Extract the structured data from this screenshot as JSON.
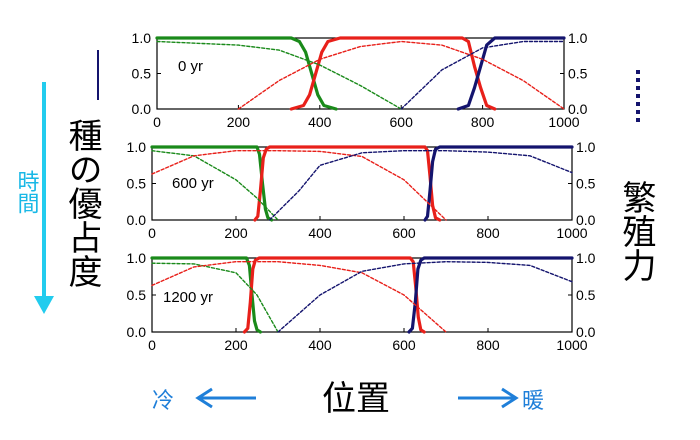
{
  "labels": {
    "time": "時間",
    "dominance": "種の優占度",
    "fecundity": "繁殖力",
    "position": "位置",
    "cold": "冷",
    "warm": "暖"
  },
  "colors": {
    "green": "#1a8a1a",
    "red": "#e8201a",
    "navy": "#14146e",
    "arrow_cyan": "#22ccee",
    "arrow_blue": "#1f7fd9",
    "ylabel_line": "#14146e"
  },
  "chart_data": [
    {
      "type": "line",
      "title": "",
      "annotation": "0 yr",
      "xlim": [
        0,
        1000
      ],
      "ylim_left": [
        0,
        1.0
      ],
      "ylim_right": [
        0,
        1.0
      ],
      "xticks": [
        "0",
        "200",
        "400",
        "600",
        "800",
        "1000"
      ],
      "yticks_left": [
        "0.0",
        "0.5",
        "1.0"
      ],
      "yticks_right": [
        "0.0",
        "0.5",
        "1.0"
      ],
      "series": [
        {
          "color": "green",
          "style": "solid",
          "x": [
            0,
            330,
            350,
            365,
            380,
            395,
            410,
            440
          ],
          "y": [
            1,
            1,
            0.95,
            0.8,
            0.5,
            0.2,
            0.05,
            0
          ]
        },
        {
          "color": "red",
          "style": "solid",
          "x": [
            330,
            360,
            375,
            390,
            405,
            420,
            450,
            750,
            765,
            780,
            795,
            810,
            830
          ],
          "y": [
            0,
            0.05,
            0.2,
            0.5,
            0.8,
            0.95,
            1,
            1,
            0.95,
            0.6,
            0.3,
            0.05,
            0
          ]
        },
        {
          "color": "navy",
          "style": "solid",
          "x": [
            740,
            765,
            780,
            795,
            810,
            830,
            1000
          ],
          "y": [
            0,
            0.05,
            0.3,
            0.6,
            0.9,
            1,
            1
          ]
        },
        {
          "color": "green",
          "style": "dashed",
          "x": [
            0,
            200,
            300,
            400,
            500,
            600
          ],
          "y": [
            0.95,
            0.9,
            0.83,
            0.62,
            0.33,
            0
          ]
        },
        {
          "color": "red",
          "style": "dashed",
          "x": [
            200,
            300,
            400,
            500,
            600,
            700,
            800,
            900,
            1000
          ],
          "y": [
            0,
            0.4,
            0.7,
            0.88,
            0.95,
            0.9,
            0.7,
            0.4,
            0
          ]
        },
        {
          "color": "navy",
          "style": "dashed",
          "x": [
            600,
            700,
            800,
            900,
            1000
          ],
          "y": [
            0,
            0.55,
            0.86,
            0.95,
            0.95
          ]
        }
      ]
    },
    {
      "type": "line",
      "title": "",
      "annotation": "600 yr",
      "xlim": [
        0,
        1000
      ],
      "ylim_left": [
        0,
        1.0
      ],
      "ylim_right": [
        0,
        1.0
      ],
      "xticks": [
        "0",
        "200",
        "400",
        "600",
        "800",
        "1000"
      ],
      "yticks_left": [
        "0.0",
        "0.5",
        "1.0"
      ],
      "yticks_right": [
        "0.0",
        "0.5",
        "1.0"
      ],
      "series": [
        {
          "color": "green",
          "style": "solid",
          "x": [
            0,
            250,
            256,
            263,
            270,
            276,
            285
          ],
          "y": [
            1,
            1,
            0.9,
            0.5,
            0.15,
            0.03,
            0
          ]
        },
        {
          "color": "red",
          "style": "solid",
          "x": [
            245,
            252,
            258,
            265,
            272,
            280,
            650,
            656,
            662,
            668,
            675,
            685
          ],
          "y": [
            0,
            0.05,
            0.4,
            0.85,
            0.97,
            1,
            1,
            0.95,
            0.6,
            0.2,
            0.03,
            0
          ]
        },
        {
          "color": "navy",
          "style": "solid",
          "x": [
            650,
            656,
            662,
            668,
            675,
            685,
            1000
          ],
          "y": [
            0,
            0.05,
            0.4,
            0.8,
            0.97,
            1,
            1
          ]
        },
        {
          "color": "green",
          "style": "dashed",
          "x": [
            0,
            100,
            200,
            250,
            300
          ],
          "y": [
            0.95,
            0.88,
            0.55,
            0.3,
            0
          ]
        },
        {
          "color": "red",
          "style": "dashed",
          "x": [
            0,
            100,
            200,
            300,
            400,
            500,
            600,
            700
          ],
          "y": [
            0.63,
            0.88,
            0.95,
            0.95,
            0.94,
            0.87,
            0.55,
            0
          ]
        },
        {
          "color": "navy",
          "style": "dashed",
          "x": [
            280,
            350,
            400,
            500,
            600,
            700,
            800,
            900,
            1000
          ],
          "y": [
            0,
            0.4,
            0.75,
            0.92,
            0.95,
            0.95,
            0.93,
            0.88,
            0.65
          ]
        }
      ]
    },
    {
      "type": "line",
      "title": "",
      "annotation": "1200 yr",
      "xlim": [
        0,
        1000
      ],
      "ylim_left": [
        0,
        1.0
      ],
      "ylim_right": [
        0,
        1.0
      ],
      "xticks": [
        "0",
        "200",
        "400",
        "600",
        "800",
        "1000"
      ],
      "yticks_left": [
        "0.0",
        "0.5",
        "1.0"
      ],
      "yticks_right": [
        "0.0",
        "0.5",
        "1.0"
      ],
      "series": [
        {
          "color": "green",
          "style": "solid",
          "x": [
            0,
            225,
            232,
            238,
            244,
            250,
            258
          ],
          "y": [
            1,
            1,
            0.9,
            0.5,
            0.15,
            0.03,
            0
          ]
        },
        {
          "color": "red",
          "style": "solid",
          "x": [
            220,
            228,
            234,
            240,
            246,
            255,
            615,
            622,
            628,
            634,
            640,
            648
          ],
          "y": [
            0,
            0.05,
            0.4,
            0.85,
            0.97,
            1,
            1,
            0.95,
            0.6,
            0.2,
            0.03,
            0
          ]
        },
        {
          "color": "navy",
          "style": "solid",
          "x": [
            612,
            620,
            627,
            633,
            640,
            648,
            1000
          ],
          "y": [
            0,
            0.05,
            0.4,
            0.85,
            0.97,
            1,
            1
          ]
        },
        {
          "color": "green",
          "style": "dashed",
          "x": [
            0,
            100,
            200,
            250,
            300
          ],
          "y": [
            0.93,
            0.92,
            0.8,
            0.5,
            0
          ]
        },
        {
          "color": "red",
          "style": "dashed",
          "x": [
            0,
            100,
            200,
            300,
            400,
            500,
            600,
            700
          ],
          "y": [
            0.63,
            0.88,
            0.95,
            0.95,
            0.9,
            0.8,
            0.5,
            0
          ]
        },
        {
          "color": "navy",
          "style": "dashed",
          "x": [
            300,
            400,
            500,
            600,
            700,
            800,
            900,
            1000
          ],
          "y": [
            0,
            0.5,
            0.82,
            0.92,
            0.95,
            0.94,
            0.9,
            0.68
          ]
        }
      ]
    }
  ]
}
